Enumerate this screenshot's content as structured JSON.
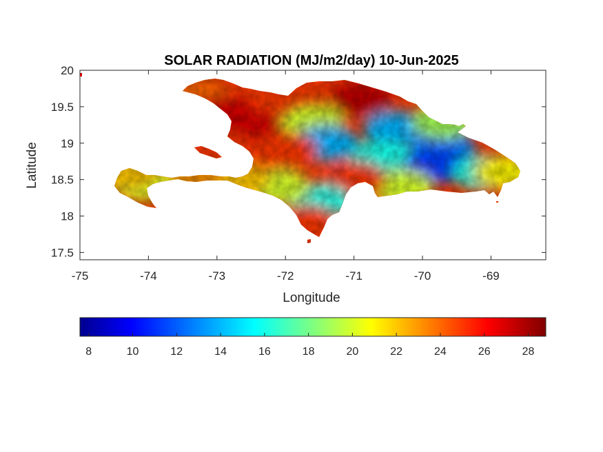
{
  "title": "SOLAR RADIATION (MJ/m2/day) 10-Jun-2025",
  "x_axis": {
    "label": "Longitude",
    "range": [
      -75,
      -68.2
    ],
    "ticks": [
      -75,
      -74,
      -73,
      -72,
      -71,
      -70,
      -69
    ],
    "tick_labels": [
      "-75",
      "-74",
      "-73",
      "-72",
      "-71",
      "-70",
      "-69"
    ]
  },
  "y_axis": {
    "label": "Latitude",
    "range": [
      17.4,
      20
    ],
    "ticks": [
      17.5,
      18,
      18.5,
      19,
      19.5,
      20
    ],
    "tick_labels": [
      "17.5",
      "18",
      "18.5",
      "19",
      "19.5",
      "20"
    ]
  },
  "colorbar": {
    "colormap": "jet",
    "range": [
      7.6,
      28.8
    ],
    "ticks": [
      8,
      10,
      12,
      14,
      16,
      18,
      20,
      22,
      24,
      26,
      28
    ],
    "tick_labels": [
      "8",
      "10",
      "12",
      "14",
      "16",
      "18",
      "20",
      "22",
      "24",
      "26",
      "28"
    ],
    "stops": [
      "#00008f",
      "#0000ff",
      "#00ffff",
      "#ffff00",
      "#ff0000",
      "#800000"
    ]
  },
  "chart_data": {
    "type": "heatmap",
    "variable": "SOLAR RADIATION",
    "units": "MJ/m2/day",
    "date": "10-Jun-2025",
    "xlabel": "Longitude",
    "ylabel": "Latitude",
    "xlim": [
      -75,
      -68.2
    ],
    "ylim": [
      17.4,
      20
    ],
    "value_range": [
      7.6,
      28.8
    ],
    "regions": [
      {
        "lon": -73.3,
        "lat": 19.65,
        "value": 24
      },
      {
        "lon": -72.9,
        "lat": 19.4,
        "value": 27
      },
      {
        "lon": -72.3,
        "lat": 19.15,
        "value": 27
      },
      {
        "lon": -71.6,
        "lat": 19.3,
        "value": 20
      },
      {
        "lon": -70.9,
        "lat": 19.6,
        "value": 27.5
      },
      {
        "lon": -71.4,
        "lat": 19.0,
        "value": 14
      },
      {
        "lon": -72.0,
        "lat": 18.9,
        "value": 25
      },
      {
        "lon": -70.4,
        "lat": 19.2,
        "value": 14
      },
      {
        "lon": -70.6,
        "lat": 18.8,
        "value": 16
      },
      {
        "lon": -69.7,
        "lat": 18.95,
        "value": 13
      },
      {
        "lon": -69.8,
        "lat": 18.7,
        "value": 11.5
      },
      {
        "lon": -69.1,
        "lat": 18.6,
        "value": 16
      },
      {
        "lon": -68.8,
        "lat": 18.6,
        "value": 21
      },
      {
        "lon": -69.7,
        "lat": 19.3,
        "value": 19
      },
      {
        "lon": -70.3,
        "lat": 18.4,
        "value": 20
      },
      {
        "lon": -71.0,
        "lat": 18.5,
        "value": 25
      },
      {
        "lon": -71.5,
        "lat": 18.2,
        "value": 16
      },
      {
        "lon": -71.7,
        "lat": 17.9,
        "value": 25
      },
      {
        "lon": -72.1,
        "lat": 18.4,
        "value": 20
      },
      {
        "lon": -72.7,
        "lat": 18.5,
        "value": 22
      },
      {
        "lon": -73.4,
        "lat": 18.45,
        "value": 23
      },
      {
        "lon": -74.1,
        "lat": 18.45,
        "value": 20
      },
      {
        "lon": -74.3,
        "lat": 18.6,
        "value": 22
      },
      {
        "lon": -72.9,
        "lat": 18.9,
        "value": 25
      },
      {
        "lon": -73.1,
        "lat": 18.95,
        "value": 25
      }
    ]
  }
}
